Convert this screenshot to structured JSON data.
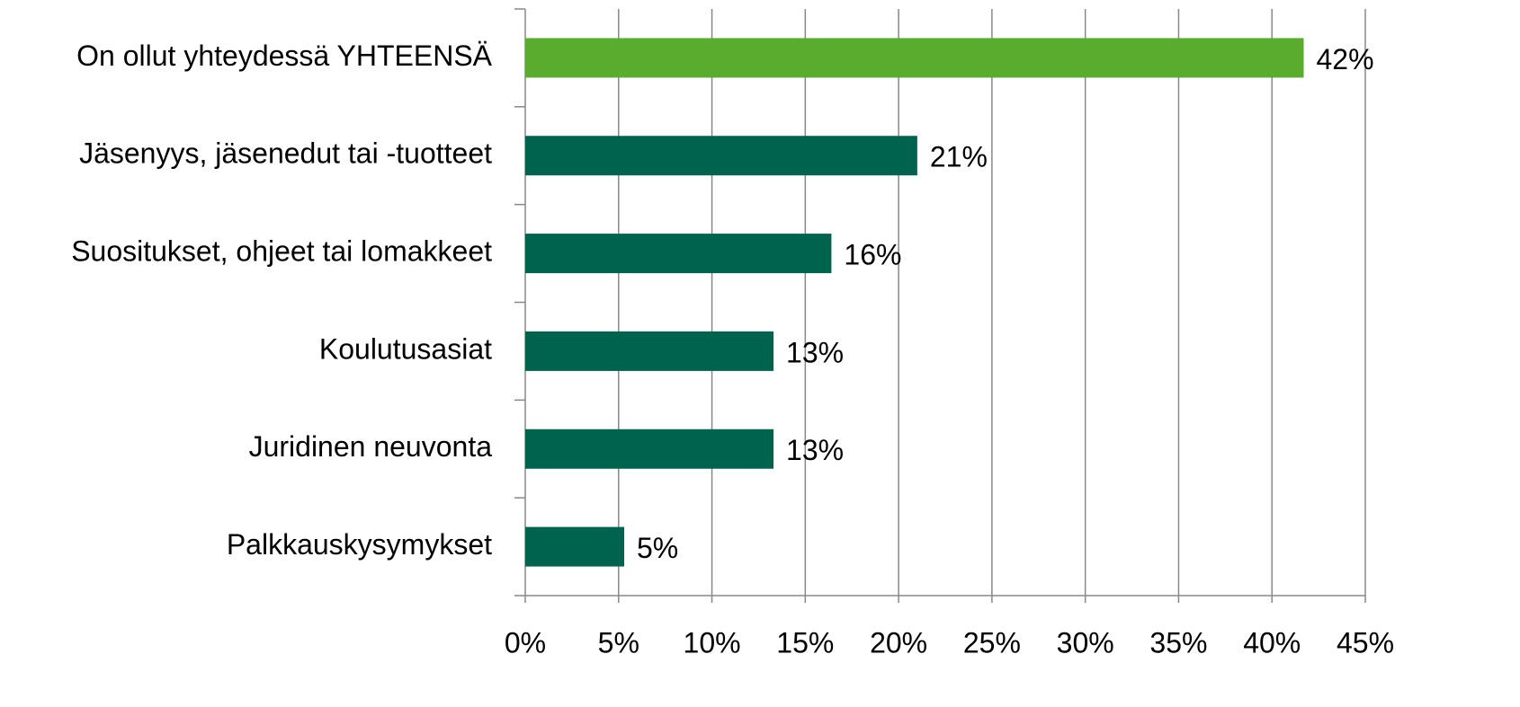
{
  "chart_data": {
    "type": "bar",
    "orientation": "horizontal",
    "categories": [
      "On ollut yhteydessä YHTEENSÄ",
      "Jäsenyys, jäsenedut tai -tuotteet",
      "Suositukset, ohjeet tai lomakkeet",
      "Koulutusasiat",
      "Juridinen neuvonta",
      "Palkkauskysymykset"
    ],
    "values": [
      41.7,
      21,
      16.4,
      13.3,
      13.3,
      5.3
    ],
    "value_labels": [
      "42%",
      "21%",
      "16%",
      "13%",
      "13%",
      "5%"
    ],
    "colors": [
      "#5aac2e",
      "#00634d",
      "#00634d",
      "#00634d",
      "#00634d",
      "#00634d"
    ],
    "xlim": [
      0,
      45
    ],
    "xticks": [
      {
        "value": 0,
        "label": "0%"
      },
      {
        "value": 5,
        "label": "5%"
      },
      {
        "value": 10,
        "label": "10%"
      },
      {
        "value": 15,
        "label": "15%"
      },
      {
        "value": 20,
        "label": "20%"
      },
      {
        "value": 25,
        "label": "25%"
      },
      {
        "value": 30,
        "label": "30%"
      },
      {
        "value": 35,
        "label": "35%"
      },
      {
        "value": 40,
        "label": "40%"
      },
      {
        "value": 45,
        "label": "45%"
      }
    ],
    "grid": true
  }
}
